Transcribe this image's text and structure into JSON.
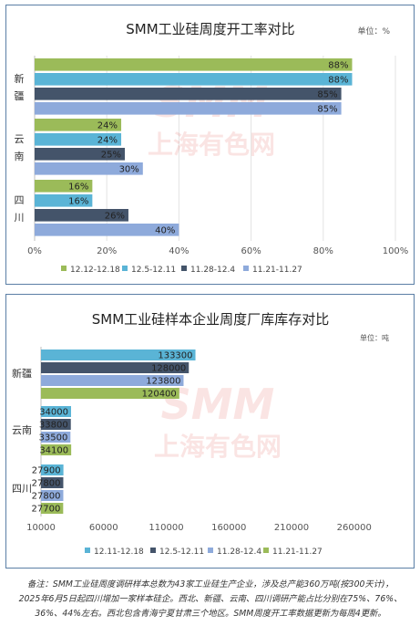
{
  "chart_data": [
    {
      "type": "bar",
      "orientation": "horizontal",
      "title": "SMM工业硅周度开工率对比",
      "unit_label": "单位：%",
      "watermark": {
        "logo": "SMM",
        "text": "上海有色网"
      },
      "categories": [
        {
          "name": "新疆",
          "chars": [
            "新",
            "疆"
          ]
        },
        {
          "name": "云南",
          "chars": [
            "云",
            "南"
          ]
        },
        {
          "name": "四川",
          "chars": [
            "四",
            "川"
          ]
        }
      ],
      "series": [
        {
          "name": "12.12-12.18",
          "color": "#9bbb59",
          "values": [
            88,
            24,
            16
          ],
          "labels": [
            "88%",
            "24%",
            "16%"
          ]
        },
        {
          "name": "12.5-12.11",
          "color": "#5ab4d6",
          "values": [
            88,
            24,
            16
          ],
          "labels": [
            "88%",
            "24%",
            "16%"
          ]
        },
        {
          "name": "11.28-12.4",
          "color": "#44546a",
          "values": [
            85,
            25,
            26
          ],
          "labels": [
            "85%",
            "25%",
            "26%"
          ]
        },
        {
          "name": "11.21-11.27",
          "color": "#8eaadb",
          "values": [
            85,
            30,
            40
          ],
          "labels": [
            "85%",
            "30%",
            "40%"
          ]
        }
      ],
      "xlim": [
        0,
        100
      ],
      "ticks": [
        "0%",
        "20%",
        "40%",
        "60%",
        "80%",
        "100%"
      ],
      "grid": true,
      "legend_position": "bottom"
    },
    {
      "type": "bar",
      "orientation": "horizontal",
      "title": "SMM工业硅样本企业周度厂库库存对比",
      "unit_label": "单位：吨",
      "watermark": {
        "logo": "SMM",
        "text": "上海有色网"
      },
      "categories": [
        "新疆",
        "云南",
        "四川"
      ],
      "series": [
        {
          "name": "12.11-12.18",
          "color": "#5ab4d6",
          "values": [
            133300,
            34000,
            27900
          ],
          "labels": [
            "133300",
            "34000",
            "27900"
          ]
        },
        {
          "name": "12.5-12.11",
          "color": "#44546a",
          "values": [
            128000,
            33800,
            27800
          ],
          "labels": [
            "128000",
            "33800",
            "27800"
          ]
        },
        {
          "name": "11.28-12.4",
          "color": "#8eaadb",
          "values": [
            123800,
            33500,
            27800
          ],
          "labels": [
            "123800",
            "33500",
            "27800"
          ]
        },
        {
          "name": "11.21-11.27",
          "color": "#9bbb59",
          "values": [
            120400,
            34100,
            27700
          ],
          "labels": [
            "120400",
            "34100",
            "27700"
          ]
        }
      ],
      "xlim": [
        10000,
        290000
      ],
      "ticks": [
        10000,
        60000,
        110000,
        160000,
        210000,
        260000
      ],
      "grid": false,
      "legend_position": "bottom"
    }
  ],
  "footnote": {
    "lines": [
      "备注：SMM工业硅周度调研样本总数为43家工业硅生产企业，涉及总产能360万吨(按300天计)，",
      "2025年6月5日起四川增加一家样本硅企。西北、新疆、云南、四川调研产能占比分别在75%、76%、",
      "36%、44%左右。西北包含青海宁夏甘肃三个地区。SMM周度开工率数据更新为每周4更新。"
    ]
  }
}
